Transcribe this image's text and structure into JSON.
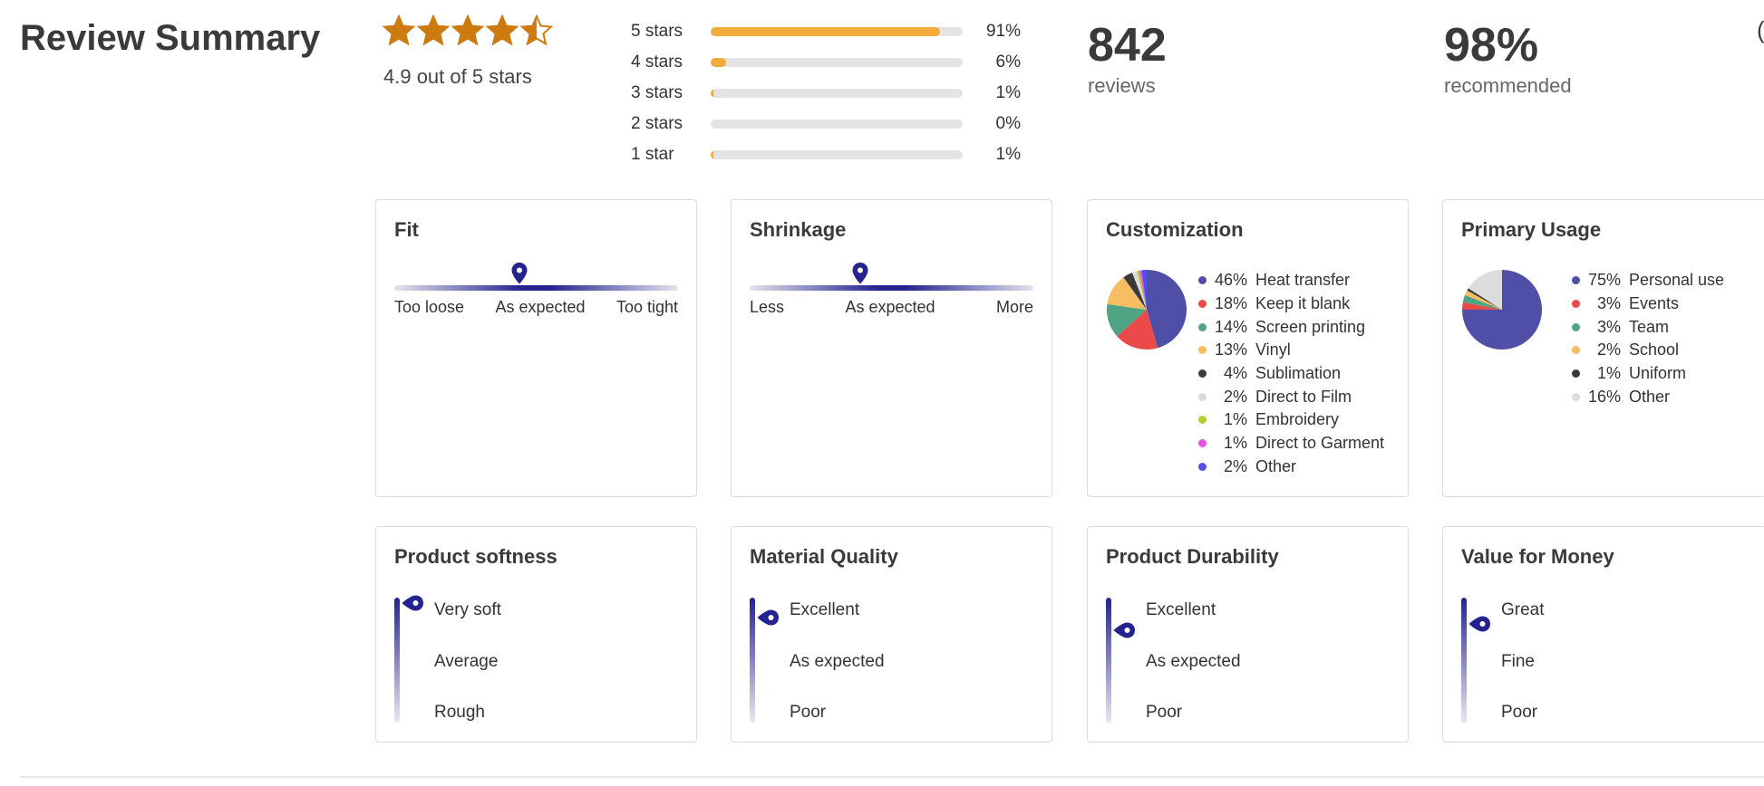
{
  "summary": {
    "title": "Review Summary",
    "rating": 4.9,
    "max_rating": 5,
    "rating_text": "4.9 out of 5 stars",
    "star_color": "#cd7a0f",
    "reviews_count": "842",
    "reviews_label": "reviews",
    "recommended_pct": "98%",
    "recommended_label": "recommended",
    "cut_off_glyph": "("
  },
  "histogram": {
    "bar_color": "#f2ac3b",
    "rows": [
      {
        "label": "5 stars",
        "pct_text": "91%",
        "value": 91
      },
      {
        "label": "4 stars",
        "pct_text": "6%",
        "value": 6
      },
      {
        "label": "3 stars",
        "pct_text": "1%",
        "value": 1
      },
      {
        "label": "2 stars",
        "pct_text": "0%",
        "value": 0
      },
      {
        "label": "1 star",
        "pct_text": "1%",
        "value": 1
      }
    ]
  },
  "fit": {
    "title": "Fit",
    "labels": [
      "Too loose",
      "As expected",
      "Too tight"
    ],
    "marker_position": 0.44
  },
  "shrinkage": {
    "title": "Shrinkage",
    "labels": [
      "Less",
      "As expected",
      "More"
    ],
    "marker_position": 0.39
  },
  "customization": {
    "title": "Customization",
    "items": [
      {
        "pct": "46%",
        "value": 46,
        "label": "Heat transfer",
        "color": "#4f4fa8"
      },
      {
        "pct": "18%",
        "value": 18,
        "label": "Keep it blank",
        "color": "#ea4a4a"
      },
      {
        "pct": "14%",
        "value": 14,
        "label": "Screen printing",
        "color": "#4fa484"
      },
      {
        "pct": "13%",
        "value": 13,
        "label": "Vinyl",
        "color": "#f7bd62"
      },
      {
        "pct": "4%",
        "value": 4,
        "label": "Sublimation",
        "color": "#3a3a3a"
      },
      {
        "pct": "2%",
        "value": 2,
        "label": "Direct to Film",
        "color": "#dcdcdc"
      },
      {
        "pct": "1%",
        "value": 1,
        "label": "Embroidery",
        "color": "#b5cc2e"
      },
      {
        "pct": "1%",
        "value": 1,
        "label": "Direct to Garment",
        "color": "#e454e0"
      },
      {
        "pct": "2%",
        "value": 2,
        "label": "Other",
        "color": "#5050e6"
      }
    ]
  },
  "usage": {
    "title": "Primary Usage",
    "items": [
      {
        "pct": "75%",
        "value": 75,
        "label": "Personal use",
        "color": "#4f4fa8"
      },
      {
        "pct": "3%",
        "value": 3,
        "label": "Events",
        "color": "#ea4a4a"
      },
      {
        "pct": "3%",
        "value": 3,
        "label": "Team",
        "color": "#4fa484"
      },
      {
        "pct": "2%",
        "value": 2,
        "label": "School",
        "color": "#f7bd62"
      },
      {
        "pct": "1%",
        "value": 1,
        "label": "Uniform",
        "color": "#3a3a3a"
      },
      {
        "pct": "16%",
        "value": 16,
        "label": "Other",
        "color": "#dcdcdc"
      }
    ]
  },
  "softness": {
    "title": "Product softness",
    "labels": [
      "Very soft",
      "Average",
      "Rough"
    ],
    "marker_position": 0.02
  },
  "material": {
    "title": "Material Quality",
    "labels": [
      "Excellent",
      "As expected",
      "Poor"
    ],
    "marker_position": 0.14
  },
  "durability": {
    "title": "Product Durability",
    "labels": [
      "Excellent",
      "As expected",
      "Poor"
    ],
    "marker_position": 0.24
  },
  "value": {
    "title": "Value for Money",
    "labels": [
      "Great",
      "Fine",
      "Poor"
    ],
    "marker_position": 0.19
  },
  "theme": {
    "accent": "#25238f",
    "track_light": "#e4e4e4"
  }
}
